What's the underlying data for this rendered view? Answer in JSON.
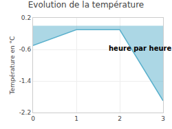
{
  "chart_data": {
    "type": "area",
    "title": "Evolution de la température",
    "ylabel": "Température en °C",
    "annotation": "heure par heure",
    "x": [
      0,
      1,
      2,
      3
    ],
    "values": [
      -0.5,
      -0.1,
      -0.1,
      -1.9
    ],
    "color": "#5ab0cc",
    "xlim": [
      0,
      3
    ],
    "xticks": [
      0,
      1,
      2,
      3
    ],
    "ylim": [
      -2.2,
      0.2
    ],
    "yticks": [
      0.2,
      -0.6,
      -1.4,
      -2.2
    ],
    "grid": true
  }
}
